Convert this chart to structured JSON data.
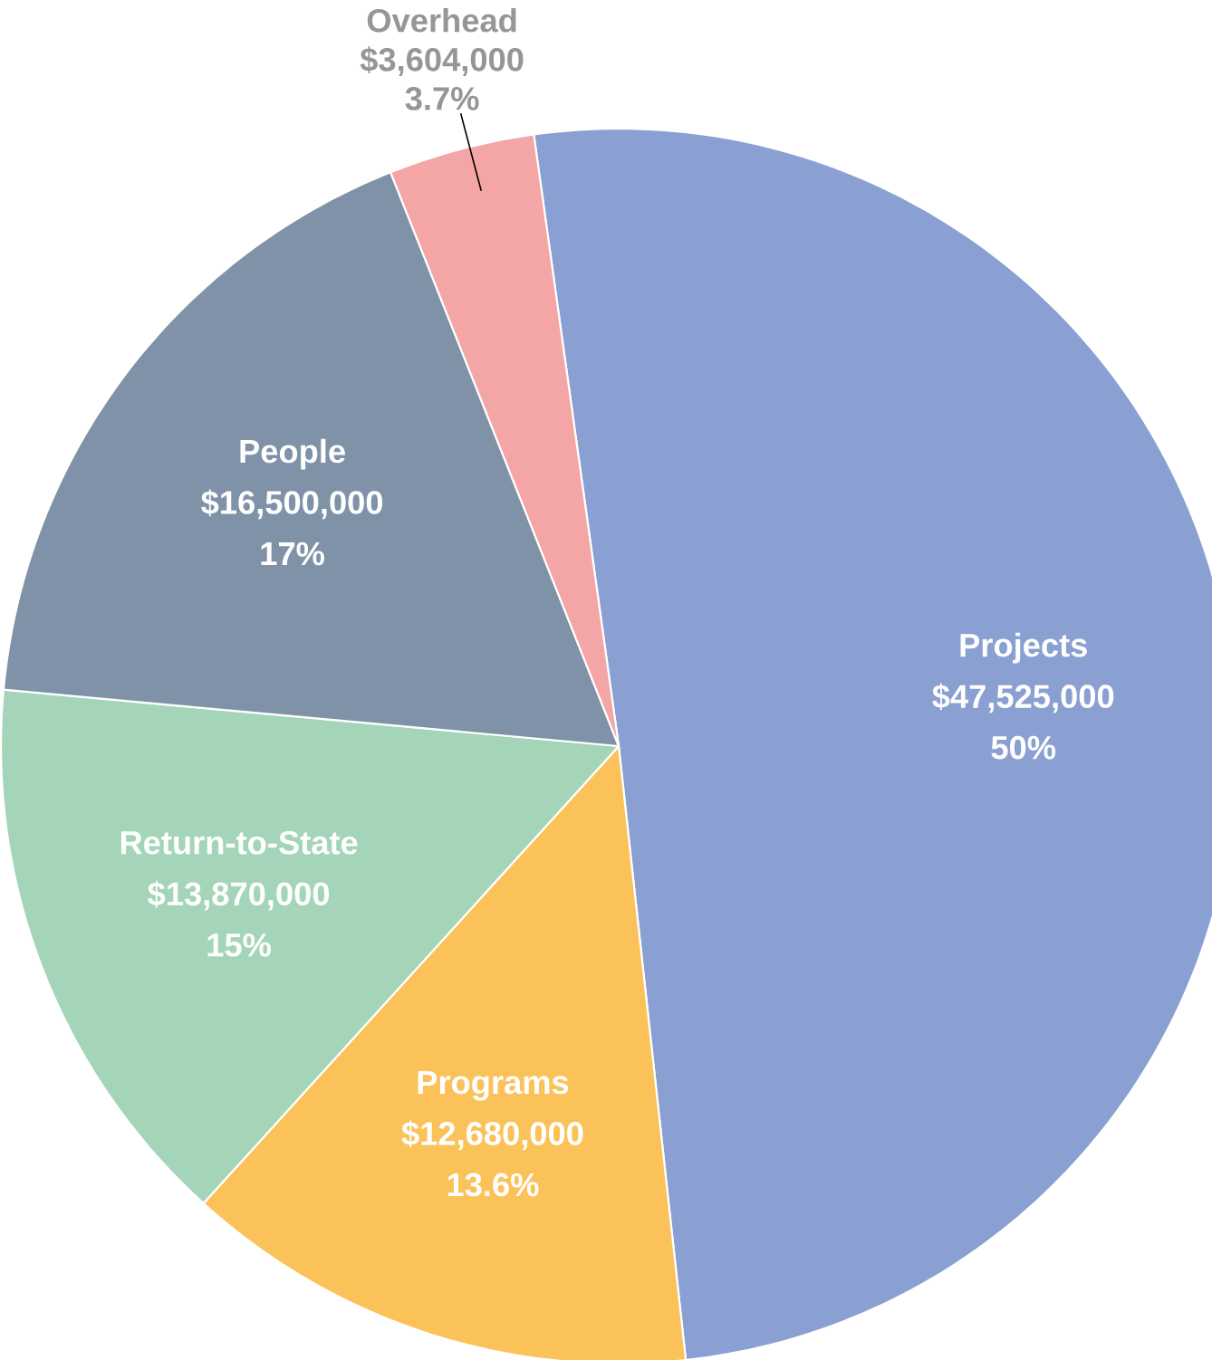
{
  "chart_data": {
    "type": "pie",
    "categories": [
      "Projects",
      "Programs",
      "Return-to-State",
      "People",
      "Overhead"
    ],
    "values": [
      47525000,
      12680000,
      13870000,
      16500000,
      3604000
    ],
    "value_labels": [
      "$47,525,000",
      "$12,680,000",
      "$13,870,000",
      "$16,500,000",
      "$3,604,000"
    ],
    "annotations": [
      "50%",
      "13.6%",
      "15%",
      "17%",
      "3.7%"
    ],
    "colors": [
      "#8aa0d2",
      "#fbc25a",
      "#a5d5b8",
      "#7f92a8",
      "#f4a5a5"
    ]
  }
}
